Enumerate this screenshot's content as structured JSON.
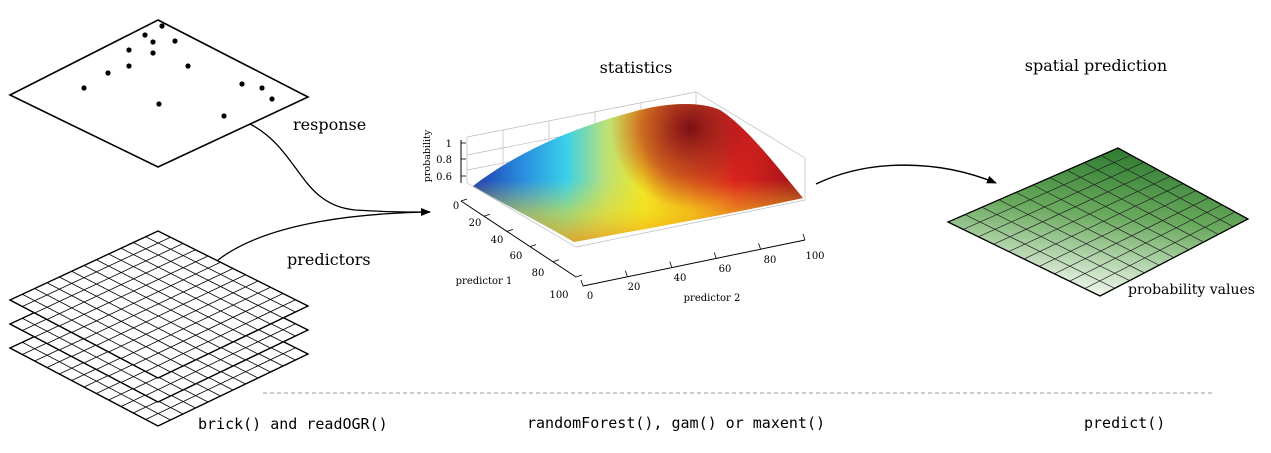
{
  "labels": {
    "response": "response",
    "predictors": "predictors",
    "statistics": "statistics",
    "spatial_prediction": "spatial prediction",
    "probability_values": "probability values"
  },
  "functions": {
    "input": "brick() and readOGR()",
    "model": "randomForest(), gam() or maxent()",
    "output": "predict()"
  },
  "surface_plot": {
    "z_label": "probability",
    "x_label": "predictor 1",
    "y_label": "predictor 2",
    "z_ticks": [
      "1",
      "0.8",
      "0.6"
    ],
    "x_ticks": [
      "0",
      "20",
      "40",
      "60",
      "80",
      "100"
    ],
    "y_ticks": [
      "0",
      "20",
      "40",
      "60",
      "80",
      "100"
    ],
    "colormap": "jet"
  },
  "colors": {
    "grid_lines": "#000000",
    "prediction_dark": "#2e7d32",
    "prediction_light": "#f2f8f0",
    "divider": "#999999"
  }
}
